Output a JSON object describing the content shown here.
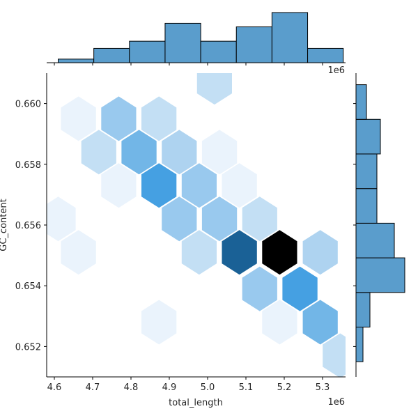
{
  "chart_data": {
    "type": "hexbin-jointplot",
    "xlabel": "total_length",
    "ylabel": "GC_content",
    "x_offset_label": "1e6",
    "y_offset_label": "",
    "xlim": [
      4.58,
      5.36
    ],
    "ylim": [
      0.651,
      0.661
    ],
    "x_ticks": [
      4.6,
      4.7,
      4.8,
      4.9,
      5.0,
      5.1,
      5.2,
      5.3
    ],
    "x_tick_labels": [
      "4.6",
      "4.7",
      "4.8",
      "4.9",
      "5.0",
      "5.1",
      "5.2",
      "5.3"
    ],
    "y_ticks": [
      0.652,
      0.654,
      0.656,
      0.658,
      0.66
    ],
    "y_tick_labels": [
      "0.652",
      "0.654",
      "0.656",
      "0.658",
      "0.660"
    ],
    "hex_colors": {
      "1": "#eaf3fc",
      "2": "#c3dff4",
      "3": "#aed3f0",
      "4": "#99c9ee",
      "5": "#72b6e7",
      "6": "#45a0e2",
      "8": "#1a6196",
      "10": "#000000"
    },
    "hexbins": [
      {
        "x": 5.018,
        "y": 0.6607,
        "count": 2
      },
      {
        "x": 4.663,
        "y": 0.6595,
        "count": 1
      },
      {
        "x": 4.768,
        "y": 0.6595,
        "count": 4
      },
      {
        "x": 4.873,
        "y": 0.6595,
        "count": 2
      },
      {
        "x": 4.716,
        "y": 0.6584,
        "count": 2
      },
      {
        "x": 4.821,
        "y": 0.6584,
        "count": 5
      },
      {
        "x": 4.926,
        "y": 0.6584,
        "count": 3
      },
      {
        "x": 5.031,
        "y": 0.6584,
        "count": 1
      },
      {
        "x": 4.768,
        "y": 0.6573,
        "count": 1
      },
      {
        "x": 4.873,
        "y": 0.6573,
        "count": 6
      },
      {
        "x": 4.978,
        "y": 0.6573,
        "count": 4
      },
      {
        "x": 5.083,
        "y": 0.6573,
        "count": 1
      },
      {
        "x": 4.61,
        "y": 0.6562,
        "count": 1
      },
      {
        "x": 4.926,
        "y": 0.6562,
        "count": 4
      },
      {
        "x": 5.031,
        "y": 0.6562,
        "count": 4
      },
      {
        "x": 5.136,
        "y": 0.6562,
        "count": 2
      },
      {
        "x": 4.663,
        "y": 0.6551,
        "count": 1
      },
      {
        "x": 4.978,
        "y": 0.6551,
        "count": 2
      },
      {
        "x": 5.083,
        "y": 0.6551,
        "count": 8
      },
      {
        "x": 5.188,
        "y": 0.6551,
        "count": 10
      },
      {
        "x": 5.294,
        "y": 0.6551,
        "count": 3
      },
      {
        "x": 5.136,
        "y": 0.6539,
        "count": 4
      },
      {
        "x": 5.241,
        "y": 0.6539,
        "count": 6
      },
      {
        "x": 4.873,
        "y": 0.6528,
        "count": 1
      },
      {
        "x": 5.188,
        "y": 0.6528,
        "count": 1
      },
      {
        "x": 5.294,
        "y": 0.6528,
        "count": 5
      },
      {
        "x": 5.346,
        "y": 0.6517,
        "count": 2
      }
    ],
    "x_marginal": {
      "bin_edges": [
        4.61,
        4.703,
        4.796,
        4.889,
        4.982,
        5.075,
        5.168,
        5.261,
        5.354
      ],
      "counts": [
        1,
        4,
        6,
        11,
        6,
        10,
        14,
        4
      ]
    },
    "y_marginal": {
      "bin_edges": [
        0.6515,
        0.65264,
        0.65378,
        0.65492,
        0.65606,
        0.6572,
        0.65834,
        0.65948,
        0.66062
      ],
      "counts": [
        2,
        4,
        14,
        11,
        6,
        6,
        7,
        3
      ]
    }
  }
}
